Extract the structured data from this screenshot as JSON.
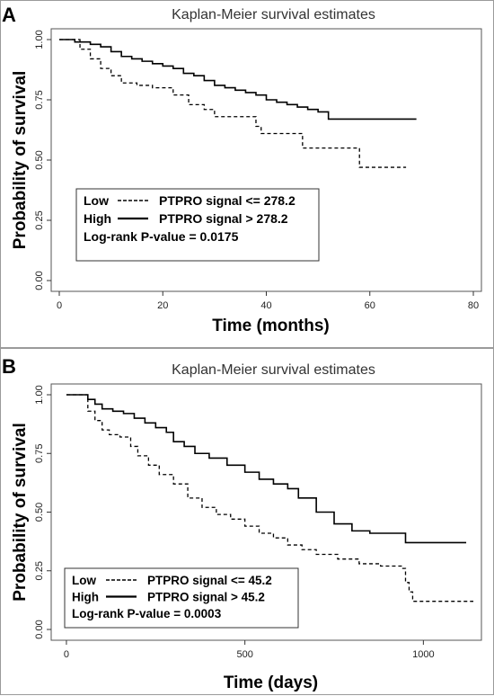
{
  "chart_data": [
    {
      "panel": "A",
      "type": "line",
      "title": "Kaplan-Meier survival estimates",
      "xlabel": "Time (months)",
      "ylabel": "Probability of survival",
      "xlim": [
        0,
        80
      ],
      "ylim": [
        0,
        1
      ],
      "xticks": [
        0,
        20,
        40,
        60,
        80
      ],
      "yticks": [
        "0.00",
        "0.25",
        "0.50",
        "0.75",
        "1.00"
      ],
      "series": [
        {
          "name": "High",
          "style": "solid",
          "x": [
            0,
            3,
            6,
            8,
            10,
            12,
            14,
            16,
            18,
            20,
            22,
            24,
            26,
            28,
            30,
            32,
            34,
            36,
            38,
            40,
            42,
            44,
            46,
            48,
            50,
            52,
            60,
            69
          ],
          "y": [
            1.0,
            0.99,
            0.98,
            0.97,
            0.95,
            0.93,
            0.92,
            0.91,
            0.9,
            0.89,
            0.88,
            0.86,
            0.85,
            0.83,
            0.81,
            0.8,
            0.79,
            0.78,
            0.77,
            0.75,
            0.74,
            0.73,
            0.72,
            0.71,
            0.7,
            0.67,
            0.67,
            0.67
          ]
        },
        {
          "name": "Low",
          "style": "dashed",
          "x": [
            0,
            4,
            6,
            8,
            10,
            12,
            15,
            18,
            22,
            25,
            28,
            30,
            33,
            38,
            39,
            47,
            52,
            57,
            58,
            67
          ],
          "y": [
            1.0,
            0.96,
            0.92,
            0.88,
            0.85,
            0.82,
            0.81,
            0.8,
            0.77,
            0.73,
            0.71,
            0.68,
            0.68,
            0.64,
            0.61,
            0.55,
            0.55,
            0.55,
            0.47,
            0.47
          ]
        }
      ],
      "legend": {
        "position": "lower-left",
        "rows": [
          {
            "group": "Low",
            "line": "dashed",
            "label": "PTPRO signal <= 278.2"
          },
          {
            "group": "High",
            "line": "solid",
            "label": "PTPRO signal  >  278.2"
          }
        ],
        "note": "Log-rank P-value = 0.0175"
      }
    },
    {
      "panel": "B",
      "type": "line",
      "title": "Kaplan-Meier survival estimates",
      "xlabel": "Time (days)",
      "ylabel": "Probability of survival",
      "xlim": [
        -20,
        1140
      ],
      "ylim": [
        0,
        1
      ],
      "xticks": [
        0,
        500,
        1000
      ],
      "yticks": [
        "0.00",
        "0.25",
        "0.50",
        "0.75",
        "1.00"
      ],
      "series": [
        {
          "name": "High",
          "style": "solid",
          "x": [
            0,
            60,
            80,
            100,
            130,
            160,
            190,
            220,
            250,
            280,
            300,
            330,
            360,
            400,
            450,
            500,
            540,
            580,
            620,
            650,
            700,
            750,
            800,
            850,
            900,
            950,
            1000,
            1120
          ],
          "y": [
            1.0,
            0.98,
            0.96,
            0.94,
            0.93,
            0.92,
            0.9,
            0.88,
            0.86,
            0.84,
            0.8,
            0.78,
            0.75,
            0.73,
            0.7,
            0.67,
            0.64,
            0.62,
            0.6,
            0.56,
            0.5,
            0.45,
            0.42,
            0.41,
            0.41,
            0.37,
            0.37,
            0.37
          ]
        },
        {
          "name": "Low",
          "style": "dashed",
          "x": [
            0,
            60,
            80,
            100,
            120,
            150,
            180,
            200,
            230,
            260,
            300,
            340,
            380,
            420,
            460,
            500,
            540,
            580,
            620,
            660,
            700,
            760,
            820,
            880,
            940,
            950,
            960,
            970,
            1140
          ],
          "y": [
            1.0,
            0.93,
            0.89,
            0.85,
            0.83,
            0.82,
            0.78,
            0.74,
            0.7,
            0.66,
            0.62,
            0.56,
            0.52,
            0.49,
            0.47,
            0.44,
            0.41,
            0.39,
            0.36,
            0.34,
            0.32,
            0.3,
            0.28,
            0.27,
            0.26,
            0.2,
            0.16,
            0.12,
            0.12
          ]
        }
      ],
      "legend": {
        "position": "lower-left",
        "rows": [
          {
            "group": "Low",
            "line": "dashed",
            "label": "PTPRO signal <= 45.2"
          },
          {
            "group": "High",
            "line": "solid",
            "label": "PTPRO signal  >  45.2"
          }
        ],
        "note": "Log-rank P-value = 0.0003"
      }
    }
  ]
}
